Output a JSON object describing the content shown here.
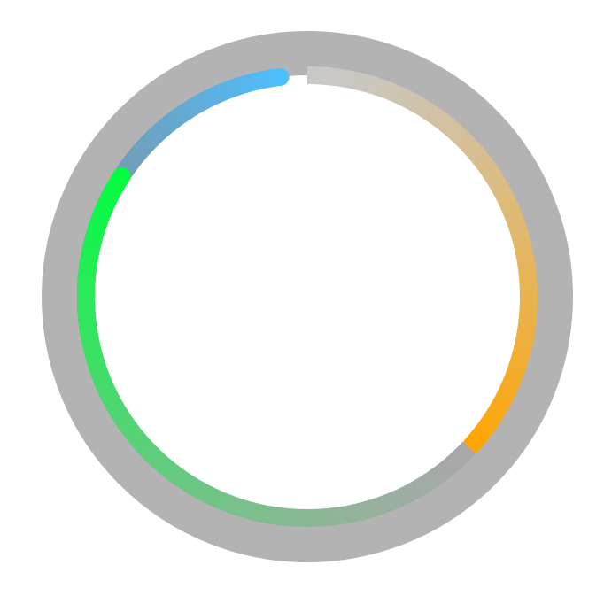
{
  "ring": {
    "track_color": "#b3b3b3",
    "center_color": "#ffffff",
    "arcs": [
      {
        "name": "blue-arc",
        "color_start": "#898989",
        "color_end": "#4dbfff"
      },
      {
        "name": "orange-arc",
        "color_start": "#c8c8c8",
        "color_end": "#ffa500"
      },
      {
        "name": "green-arc",
        "color_start": "#a8a8a8",
        "color_end": "#00ff40"
      }
    ]
  }
}
